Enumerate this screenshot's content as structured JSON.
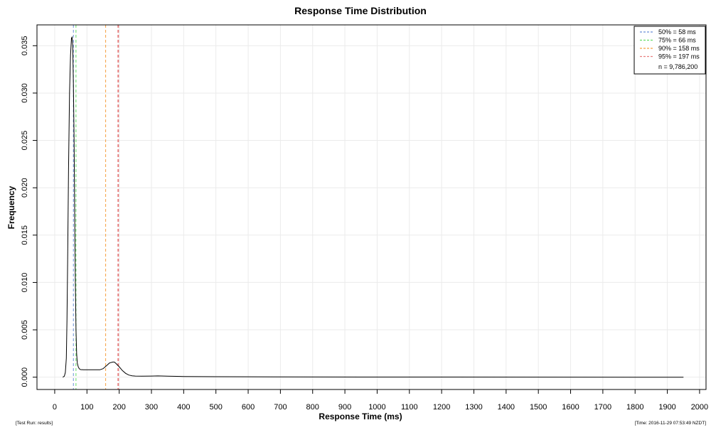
{
  "chart_data": {
    "type": "line",
    "title": "Response Time Distribution",
    "xlabel": "Response Time (ms)",
    "ylabel": "Frequency",
    "xlim": [
      -55,
      2020
    ],
    "ylim": [
      -0.0013,
      0.0372
    ],
    "xticks": [
      0,
      100,
      200,
      300,
      400,
      500,
      600,
      700,
      800,
      900,
      1000,
      1100,
      1200,
      1300,
      1400,
      1500,
      1600,
      1700,
      1800,
      1900,
      2000
    ],
    "yticks": [
      0.0,
      0.005,
      0.01,
      0.015,
      0.02,
      0.025,
      0.03,
      0.035
    ],
    "ytick_labels": [
      "0.000",
      "0.005",
      "0.010",
      "0.015",
      "0.020",
      "0.025",
      "0.030",
      "0.035"
    ],
    "grid": true,
    "series": [
      {
        "color": "#000000",
        "x": [
          25,
          30,
          33,
          36,
          38,
          40,
          43,
          46,
          49,
          52,
          54,
          56,
          58,
          60,
          62,
          64,
          66,
          68,
          70,
          73,
          76,
          80,
          90,
          100,
          120,
          140,
          150,
          160,
          170,
          180,
          185,
          190,
          200,
          210,
          220,
          230,
          240,
          250,
          270,
          300,
          320,
          350,
          400,
          500,
          600,
          800,
          1000,
          1200,
          1500,
          1800,
          1950
        ],
        "y": [
          0,
          0.0001,
          0.0005,
          0.002,
          0.006,
          0.012,
          0.022,
          0.03,
          0.034,
          0.0358,
          0.0359,
          0.035,
          0.031,
          0.025,
          0.017,
          0.01,
          0.005,
          0.0025,
          0.0015,
          0.0011,
          0.0009,
          0.0008,
          0.00078,
          0.00078,
          0.00078,
          0.00078,
          0.0009,
          0.0012,
          0.0015,
          0.0016,
          0.0016,
          0.00145,
          0.0011,
          0.0007,
          0.0004,
          0.00022,
          0.00015,
          0.00012,
          0.0001,
          0.00012,
          0.00013,
          0.0001,
          7e-05,
          5e-05,
          4e-05,
          2e-05,
          1e-05,
          1e-05,
          5e-06,
          2e-06,
          0
        ]
      }
    ],
    "vlines": [
      {
        "label": "50% = 58 ms",
        "x": 58,
        "color": "#6b8fd6"
      },
      {
        "label": "75% = 66 ms",
        "x": 66,
        "color": "#66dd66"
      },
      {
        "label": "90% = 158 ms",
        "x": 158,
        "color": "#f5a040"
      },
      {
        "label": "95% = 197 ms",
        "x": 197,
        "color": "#e88080"
      }
    ],
    "legend_note": "n = 9,786,200",
    "legend_position": "top-right"
  },
  "footer": {
    "left": "[Test Run: results]",
    "right": "[Time: 2016-11-29 07:53:49 NZDT]"
  }
}
